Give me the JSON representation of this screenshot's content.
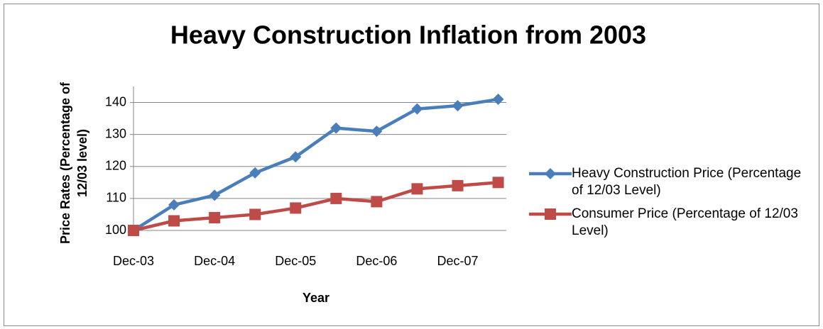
{
  "chart_data": {
    "type": "line",
    "title": "Heavy Construction Inflation from 2003",
    "x_label": "Year",
    "y_label": "Price Rates (Percentage of 12/03 level)",
    "categories": [
      "Dec-03",
      null,
      "Dec-04",
      null,
      "Dec-05",
      null,
      "Dec-06",
      null,
      "Dec-07",
      null
    ],
    "series": [
      {
        "name": "Heavy Construction Price (Percentage of 12/03 Level)",
        "color": "#4a7ebb",
        "marker": "diamond",
        "values": [
          100,
          108,
          111,
          118,
          123,
          132,
          131,
          138,
          139,
          141
        ]
      },
      {
        "name": "Consumer Price (Percentage of 12/03 Level)",
        "color": "#be4b48",
        "marker": "square",
        "values": [
          100,
          103,
          104,
          105,
          107,
          110,
          109,
          113,
          114,
          115
        ]
      }
    ],
    "ylim": [
      100,
      145
    ],
    "yticks": [
      100,
      110,
      120,
      130,
      140
    ],
    "grid": true,
    "legend": "right"
  }
}
